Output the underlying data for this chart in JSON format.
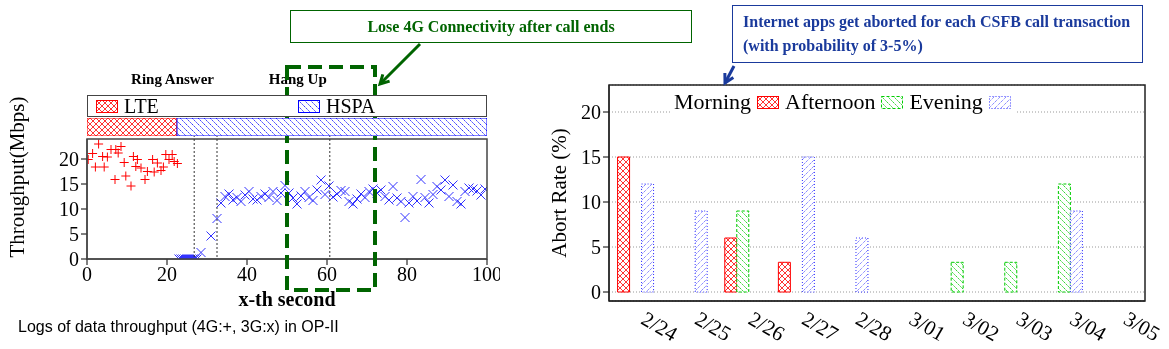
{
  "chart_data": [
    {
      "type": "scatter",
      "xlabel": "x-th second",
      "ylabel": "Throughput(Mbps)",
      "xlim": [
        0,
        100
      ],
      "xticks": [
        0,
        20,
        40,
        60,
        80,
        100
      ],
      "ylim": [
        0,
        24
      ],
      "yticks": [
        0,
        5,
        10,
        15,
        20
      ],
      "series": [
        {
          "color": "#ff0000",
          "marker": "cross",
          "x": [
            0.3,
            1.4,
            2.1,
            2.9,
            3.9,
            4.3,
            5.1,
            6,
            7,
            7.2,
            7.8,
            8.5,
            9.3,
            9.7,
            11,
            11.6,
            12.2,
            12.6,
            13.5,
            14.5,
            15.1,
            16.4,
            16.8,
            17.6,
            18.5,
            19.1,
            19.7,
            20.5,
            21.3,
            21.8,
            22.6
          ],
          "values": [
            19.9,
            21.1,
            18.4,
            23,
            20.5,
            18.4,
            20.4,
            21.9,
            15.9,
            21.9,
            21.2,
            22.5,
            19.3,
            16.6,
            14.6,
            20.5,
            18.5,
            19.9,
            18.2,
            15.9,
            17.5,
            19.9,
            17.4,
            19.2,
            17.7,
            18.4,
            20.9,
            19.9,
            20.9,
            19.5,
            19.1
          ]
        },
        {
          "color": "#3333ff",
          "marker": "x",
          "x": [
            23,
            23.5,
            24,
            24.5,
            25,
            25.5,
            26,
            26.5,
            27,
            27.5,
            28.5,
            31,
            32.5,
            33.5,
            34.5,
            35.5,
            36.5,
            37.5,
            38.5,
            39.5,
            40.5,
            41.5,
            42.5,
            43.5,
            44.5,
            45.5,
            46.5,
            47.5,
            48.5,
            49.5,
            50.5,
            51.5,
            52.5,
            53.5,
            54.5,
            55.5,
            56.5,
            57.5,
            58.5,
            59.5,
            60.5,
            61.5,
            62.5,
            63.5,
            64.5,
            65.5,
            66.5,
            67.5,
            68.5,
            69.5,
            70.5,
            71.5,
            72.5,
            73.5,
            74.5,
            75.5,
            76.5,
            77.5,
            78.5,
            79.5,
            80.5,
            81.5,
            82.5,
            83.5,
            84.5,
            85.5,
            86.5,
            87.5,
            88.5,
            89.5,
            90.5,
            91.5,
            92.5,
            93.5,
            94.5,
            95.5,
            96.5,
            97.5,
            98.5,
            99.5
          ],
          "values": [
            0,
            0,
            0,
            0,
            0,
            0,
            0,
            0,
            0,
            0,
            1.3,
            4.6,
            8.1,
            11.2,
            12.5,
            13,
            11.8,
            12.3,
            11.5,
            12.8,
            13.5,
            12,
            11.8,
            12.5,
            13,
            12.3,
            13.5,
            11.7,
            13.2,
            14.7,
            13.2,
            12.2,
            11,
            12.6,
            13.5,
            12.3,
            11.7,
            13.8,
            15.8,
            12.9,
            14.6,
            12.4,
            13,
            13.7,
            13.5,
            11.5,
            11,
            12,
            13,
            12.3,
            13.5,
            14,
            13.2,
            13.8,
            12.5,
            11.8,
            14.5,
            12.2,
            11.5,
            8.3,
            11.2,
            12.5,
            11.6,
            15.9,
            12.3,
            11.2,
            12.9,
            14.5,
            13.8,
            15.8,
            12.5,
            14.8,
            11.5,
            11,
            13.5,
            14.2,
            14,
            13.6,
            12.8,
            14
          ]
        }
      ],
      "ref_lines": [
        {
          "axis": "x",
          "value": 26.8,
          "label": null
        },
        {
          "axis": "x",
          "value": 32.5,
          "label": "Ring Answer"
        },
        {
          "axis": "x",
          "value": 60.7,
          "label": "Hang Up"
        }
      ],
      "annotations": [
        "Lose 4G Connectivity after call ends",
        "Logs of data throughput (4G:+, 3G:x) in OP-II"
      ]
    },
    {
      "type": "bar",
      "orientation": "horizontal",
      "stacked": true,
      "categories": [
        null
      ],
      "xlim": [
        0,
        100
      ],
      "legend": "top",
      "series": [
        {
          "name": "LTE",
          "color": "#ff0000",
          "values": [
            22.5
          ]
        },
        {
          "name": "HSPA",
          "color": "#0000ff",
          "values": [
            77.5
          ]
        }
      ]
    },
    {
      "type": "bar",
      "ylabel": "Abort Rate (%)",
      "categories": [
        "2/24",
        "2/25",
        "2/26",
        "2/27",
        "2/28",
        "3/01",
        "3/02",
        "3/03",
        "3/04",
        "3/05"
      ],
      "ylim": [
        -1,
        23
      ],
      "yticks": [
        0,
        5,
        10,
        15,
        20
      ],
      "grid": "y",
      "legend": "top",
      "series": [
        {
          "name": "Morning",
          "color": "#ff0000",
          "values": [
            15,
            0,
            6,
            3.3,
            0,
            0,
            0,
            0,
            0,
            0
          ]
        },
        {
          "name": "Afternoon",
          "color": "#00cc00",
          "values": [
            0,
            0,
            9,
            0,
            0,
            0,
            3.3,
            3.3,
            12,
            0
          ]
        },
        {
          "name": "Evening",
          "color": "#3333ff",
          "values": [
            12,
            9,
            0,
            15,
            6,
            0,
            0,
            0,
            9,
            0
          ]
        }
      ],
      "annotations": [
        "Internet apps get aborted for each CSFB call transaction (with probability of 3-5%)"
      ]
    }
  ]
}
